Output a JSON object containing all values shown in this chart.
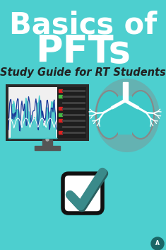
{
  "bg_color": "#4dcfcf",
  "title_line1": "Basics of",
  "title_line2": "PFTs",
  "subtitle": "Study Guide for RT Students",
  "title_color": "#ffffff",
  "subtitle_color": "#222222",
  "title_fontsize": 30,
  "subtitle_fontsize": 10.5,
  "lung_color": "#3ec8c8",
  "lung_shadow": "#aaaaaa",
  "check_color": "#3a8a8a",
  "check_shadow_color": "#2a6060",
  "check_box_color": "#ffffff",
  "check_box_outline": "#111111",
  "monitor_frame_color": "#2a2a2a",
  "monitor_screen_color": "#e8e8e8",
  "monitor_chart_teal": "#3ec8c8",
  "monitor_chart_blue": "#1a3a99",
  "monitor_chart_white": "#ffffff",
  "legend_colors": [
    "#dd2222",
    "#44bb44",
    "#222222",
    "#dd2222",
    "#44bb44",
    "#dd2222",
    "#222222",
    "#dd2222"
  ],
  "watermark_color": "#1a6666"
}
